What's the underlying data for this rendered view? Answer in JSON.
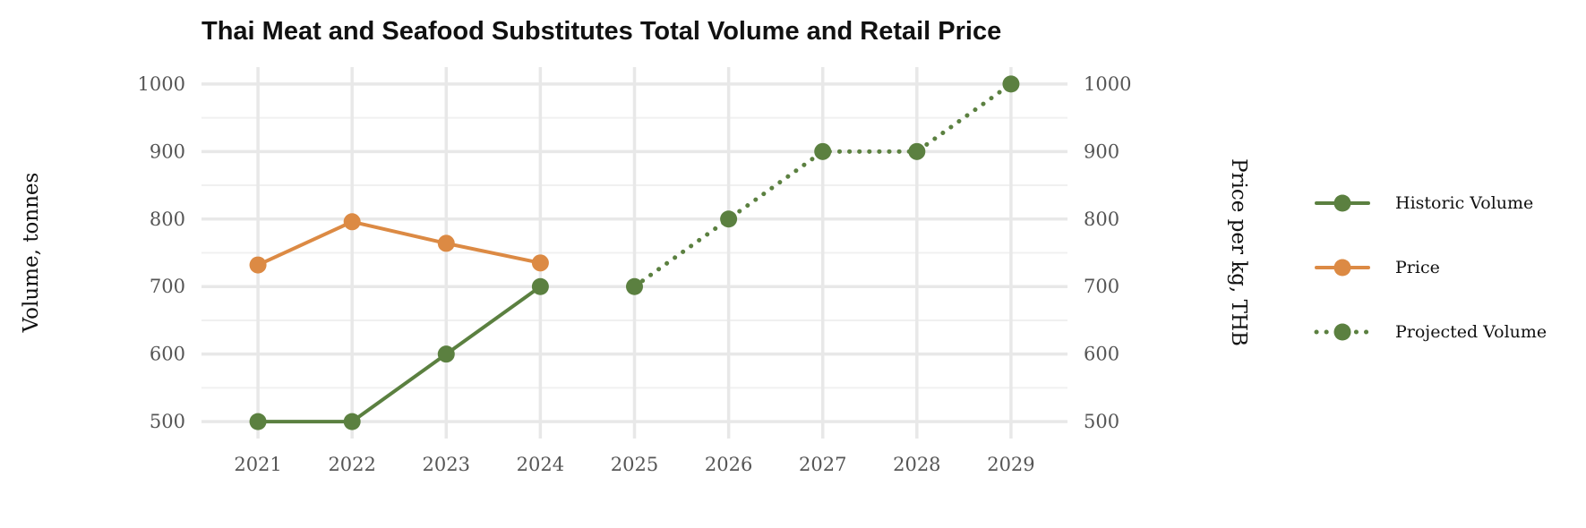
{
  "chart_data": {
    "type": "line",
    "title": "Thai Meat and Seafood Substitutes Total Volume and Retail Price",
    "ylabel": "Volume, tonnes",
    "ylabel_right": "Price per kg, THB",
    "x": [
      2021,
      2022,
      2023,
      2024,
      2025,
      2026,
      2027,
      2028,
      2029
    ],
    "xlim": [
      2020.4,
      2029.6
    ],
    "ylim": [
      475,
      1025
    ],
    "y_ticks": [
      500,
      600,
      700,
      800,
      900,
      1000
    ],
    "y_ticks_right": [
      500,
      600,
      700,
      800,
      900,
      1000
    ],
    "grid": true,
    "legend_position": "right",
    "series": [
      {
        "name": "Historic Volume",
        "color": "#5b8040",
        "style": "solid",
        "x": [
          2021,
          2022,
          2023,
          2024
        ],
        "values": [
          500,
          500,
          600,
          700
        ]
      },
      {
        "name": "Price",
        "color": "#dc8a44",
        "style": "solid",
        "x": [
          2021,
          2022,
          2023,
          2024
        ],
        "values": [
          732,
          796,
          764,
          735
        ]
      },
      {
        "name": "Projected Volume",
        "color": "#5b8040",
        "style": "dotted",
        "x": [
          2025,
          2026,
          2027,
          2028,
          2029
        ],
        "values": [
          700,
          800,
          900,
          900,
          1000
        ]
      }
    ]
  }
}
